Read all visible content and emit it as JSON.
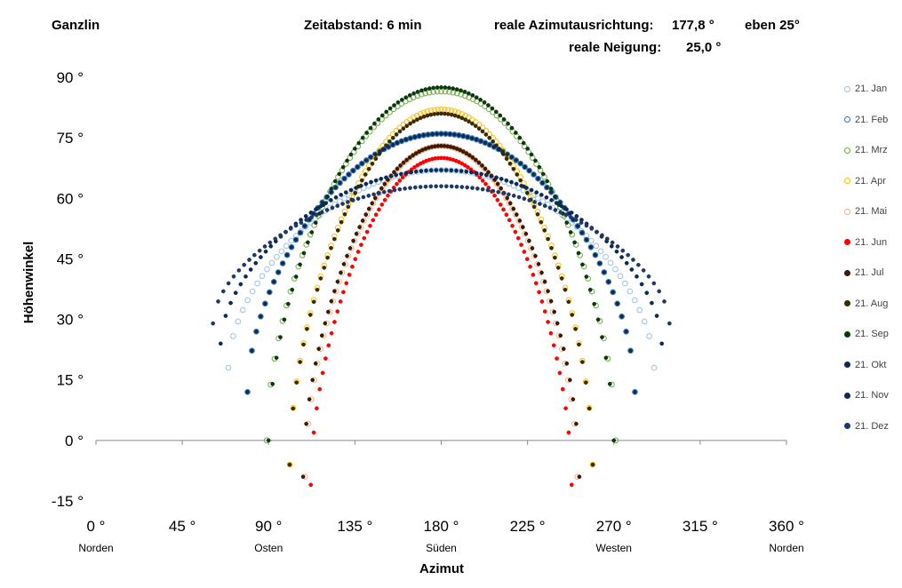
{
  "header": {
    "location": "Ganzlin",
    "interval": "Zeitabstand: 6 min",
    "azimuth_label": "reale Azimutausrichtung:",
    "azimuth_value": "177,8 °",
    "plane": "eben 25°",
    "tilt_label": "reale Neigung:",
    "tilt_value": "25,0 °"
  },
  "chart_data": {
    "type": "scatter",
    "xlabel": "Azimut",
    "ylabel": "Höhenwinkel",
    "xlim": [
      0,
      360
    ],
    "ylim": [
      -15,
      90
    ],
    "x_ticks": [
      0,
      45,
      90,
      135,
      180,
      225,
      270,
      315,
      360
    ],
    "x_tick_labels": [
      "0 °",
      "45 °",
      "90 °",
      "135 °",
      "180 °",
      "225 °",
      "270 °",
      "315 °",
      "360 °"
    ],
    "y_ticks": [
      90,
      75,
      60,
      45,
      30,
      15,
      0,
      -15
    ],
    "y_tick_labels": [
      "90 °",
      "75 °",
      "60 °",
      "45 °",
      "30 °",
      "15 °",
      "0 °",
      "-15 °"
    ],
    "direction_labels": [
      {
        "x": 0,
        "text": "Norden"
      },
      {
        "x": 90,
        "text": "Osten"
      },
      {
        "x": 180,
        "text": "Süden"
      },
      {
        "x": 270,
        "text": "Westen"
      },
      {
        "x": 360,
        "text": "Norden"
      }
    ],
    "grid": false,
    "legend_position": "right",
    "series": [
      {
        "name": "21. Jan",
        "color": "#9dc3e6",
        "marker": "open",
        "az_min": 69,
        "alt_min": 18,
        "alt_max": 67
      },
      {
        "name": "21. Feb",
        "color": "#2e75b6",
        "marker": "open",
        "az_min": 79,
        "alt_min": 12,
        "alt_max": 76
      },
      {
        "name": "21. Mrz",
        "color": "#70ad47",
        "marker": "open",
        "az_min": 89,
        "alt_min": 0,
        "alt_max": 86.5
      },
      {
        "name": "21. Apr",
        "color": "#ffc000",
        "marker": "open",
        "az_min": 101,
        "alt_min": -6,
        "alt_max": 82
      },
      {
        "name": "21. Mai",
        "color": "#f4b183",
        "marker": "open",
        "az_min": 109,
        "alt_min": -9,
        "alt_max": 73
      },
      {
        "name": "21. Jun",
        "color": "#ff0000",
        "marker": "filled",
        "az_min": 112,
        "alt_min": -11,
        "alt_max": 70
      },
      {
        "name": "21. Jul",
        "color": "#3a1a08",
        "marker": "filled",
        "az_min": 108,
        "alt_min": -9,
        "alt_max": 73
      },
      {
        "name": "21. Aug",
        "color": "#3a2a00",
        "marker": "filled",
        "az_min": 101,
        "alt_min": -6,
        "alt_max": 81
      },
      {
        "name": "21. Sep",
        "color": "#0a3a0a",
        "marker": "filled",
        "az_min": 90,
        "alt_min": 0,
        "alt_max": 87.5
      },
      {
        "name": "21. Okt",
        "color": "#0b2a55",
        "marker": "filled",
        "az_min": 79,
        "alt_min": 12,
        "alt_max": 76
      },
      {
        "name": "21. Nov",
        "color": "#0b2a55",
        "marker": "filled",
        "az_min": 65,
        "alt_min": 24,
        "alt_max": 67
      },
      {
        "name": "21. Dez",
        "color": "#1f3864",
        "marker": "filled",
        "az_min": 61,
        "alt_min": 29,
        "alt_max": 63
      }
    ]
  }
}
